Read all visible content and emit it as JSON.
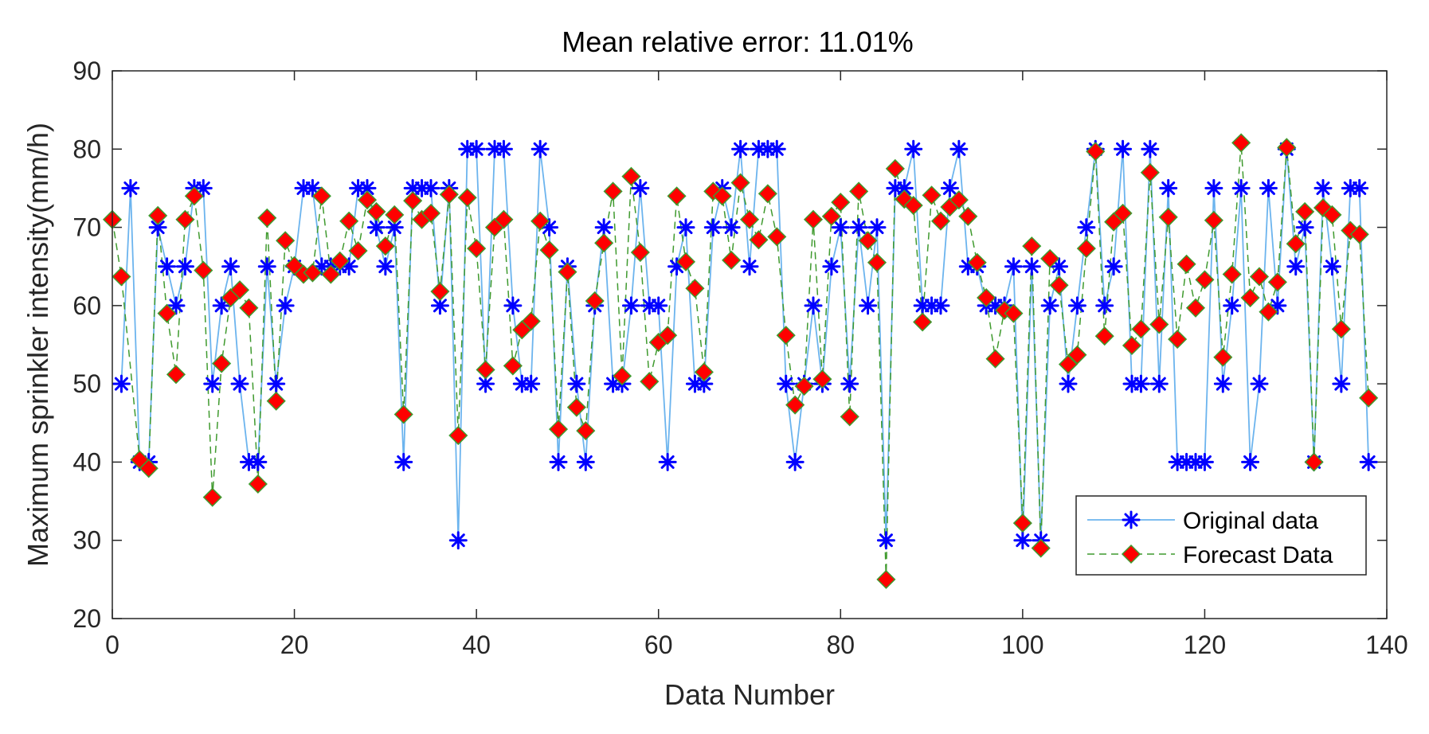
{
  "chart_data": {
    "type": "line",
    "title": "Mean relative error:  11.01%",
    "xlabel": "Data Number",
    "ylabel": "Maximum sprinkler intensity(mm/h)",
    "xlim": [
      0,
      140
    ],
    "ylim": [
      20,
      90
    ],
    "xticks": [
      0,
      20,
      40,
      60,
      80,
      100,
      120,
      140
    ],
    "yticks": [
      20,
      30,
      40,
      50,
      60,
      70,
      80,
      90
    ],
    "grid": false,
    "legend_position": "bottom-right",
    "series": [
      {
        "name": "Original data",
        "color": "#6cb4ee",
        "marker_color": "#0000ff",
        "line_style": "solid",
        "marker": "star",
        "x": [
          1,
          2,
          3,
          4,
          5,
          6,
          7,
          8,
          9,
          10,
          11,
          12,
          13,
          14,
          15,
          16,
          17,
          18,
          19,
          20,
          21,
          22,
          23,
          24,
          25,
          26,
          27,
          28,
          29,
          30,
          31,
          32,
          33,
          34,
          35,
          36,
          37,
          38,
          39,
          40,
          41,
          42,
          43,
          44,
          45,
          46,
          47,
          48,
          49,
          50,
          51,
          52,
          53,
          54,
          55,
          56,
          57,
          58,
          59,
          60,
          61,
          62,
          63,
          64,
          65,
          66,
          67,
          68,
          69,
          70,
          71,
          72,
          73,
          74,
          75,
          76,
          77,
          78,
          79,
          80,
          81,
          82,
          83,
          84,
          85,
          86,
          87,
          88,
          89,
          90,
          91,
          92,
          93,
          94,
          95,
          96,
          97,
          98,
          99,
          100,
          101,
          102,
          103,
          104,
          105,
          106,
          107,
          108,
          109,
          110,
          111,
          112,
          113,
          114,
          115,
          116,
          117,
          118,
          119,
          120,
          121,
          122,
          123,
          124,
          125,
          126,
          127,
          128,
          129,
          130,
          131,
          132,
          133,
          134,
          135,
          136,
          137,
          138
        ],
        "values": [
          50,
          75,
          40,
          40,
          70,
          65,
          60,
          65,
          75,
          75,
          50,
          60,
          65,
          50,
          40,
          40,
          65,
          50,
          60,
          65,
          75,
          75,
          65,
          65,
          65,
          65,
          75,
          75,
          70,
          65,
          70,
          40,
          75,
          75,
          75,
          60,
          75,
          30,
          80,
          80,
          50,
          80,
          80,
          60,
          50,
          50,
          80,
          70,
          40,
          65,
          50,
          40,
          60,
          70,
          50,
          50,
          60,
          75,
          60,
          60,
          40,
          65,
          70,
          50,
          50,
          70,
          75,
          70,
          80,
          65,
          80,
          80,
          80,
          50,
          40,
          50,
          60,
          50,
          65,
          70,
          50,
          70,
          60,
          70,
          30,
          75,
          75,
          80,
          60,
          60,
          60,
          75,
          80,
          65,
          65,
          60,
          60,
          60,
          65,
          30,
          65,
          30,
          60,
          65,
          50,
          60,
          70,
          80,
          60,
          65,
          80,
          50,
          50,
          80,
          50,
          75,
          40,
          40,
          40,
          40,
          75,
          50,
          60,
          75,
          40,
          50,
          75,
          60,
          80,
          65,
          70,
          40,
          75,
          65,
          50,
          75,
          75,
          40
        ]
      },
      {
        "name": "Forecast Data",
        "color": "#3f9a2e",
        "marker_color": "#ff0000",
        "line_style": "dashed",
        "marker": "diamond",
        "x": [
          0,
          1,
          3,
          4,
          5,
          6,
          7,
          8,
          9,
          10,
          11,
          12,
          13,
          14,
          15,
          16,
          17,
          18,
          19,
          20,
          21,
          22,
          23,
          24,
          25,
          26,
          27,
          28,
          29,
          30,
          31,
          32,
          33,
          34,
          35,
          36,
          37,
          38,
          39,
          40,
          41,
          42,
          43,
          44,
          45,
          46,
          47,
          48,
          49,
          50,
          51,
          52,
          53,
          54,
          55,
          56,
          57,
          58,
          59,
          60,
          61,
          62,
          63,
          64,
          65,
          66,
          67,
          68,
          69,
          70,
          71,
          72,
          73,
          74,
          75,
          76,
          77,
          78,
          79,
          80,
          81,
          82,
          83,
          84,
          85,
          86,
          87,
          88,
          89,
          90,
          91,
          92,
          93,
          94,
          95,
          96,
          97,
          98,
          99,
          100,
          101,
          102,
          103,
          104,
          105,
          106,
          107,
          108,
          109,
          110,
          111,
          112,
          113,
          114,
          115,
          116,
          117,
          118,
          119,
          120,
          121,
          122,
          123,
          124,
          125,
          126,
          127,
          128,
          129,
          130,
          131,
          132,
          133,
          134,
          135,
          136,
          137,
          138
        ],
        "values": [
          71,
          63.7,
          40.3,
          39.2,
          71.5,
          59,
          51.2,
          71,
          74,
          64.5,
          35.5,
          52.6,
          61,
          62,
          59.7,
          37.2,
          71.2,
          47.8,
          68.3,
          65.1,
          64,
          64.2,
          74,
          64,
          65.7,
          70.8,
          67,
          73.5,
          72,
          67.6,
          71.6,
          46.1,
          73.4,
          71,
          71.8,
          61.8,
          74.2,
          43.4,
          73.8,
          67.3,
          51.8,
          70,
          71,
          52.3,
          56.9,
          58,
          70.8,
          67.1,
          44.2,
          64.3,
          47,
          44,
          60.6,
          68,
          74.6,
          51,
          76.5,
          66.8,
          50.3,
          55.3,
          56.2,
          74,
          65.6,
          62.2,
          51.5,
          74.6,
          74,
          65.8,
          75.7,
          71,
          68.4,
          74.3,
          68.8,
          56.2,
          47.3,
          49.7,
          71,
          50.6,
          71.4,
          73.2,
          45.8,
          74.6,
          68.3,
          65.5,
          25,
          77.5,
          73.6,
          72.8,
          57.9,
          74.1,
          70.8,
          72.6,
          73.5,
          71.4,
          65.5,
          61,
          53.2,
          59.4,
          59,
          32.2,
          67.6,
          29,
          66,
          62.6,
          52.5,
          53.7,
          67.3,
          79.7,
          56.1,
          70.7,
          71.8,
          54.9,
          57,
          77,
          57.6,
          71.3,
          55.7,
          65.3,
          59.7,
          63.3,
          70.9,
          53.4,
          64,
          80.8,
          61,
          63.7,
          59.2,
          63,
          80.2,
          67.9,
          72,
          40,
          72.5,
          71.6,
          57,
          69.6,
          69.1,
          48.2
        ]
      }
    ]
  }
}
